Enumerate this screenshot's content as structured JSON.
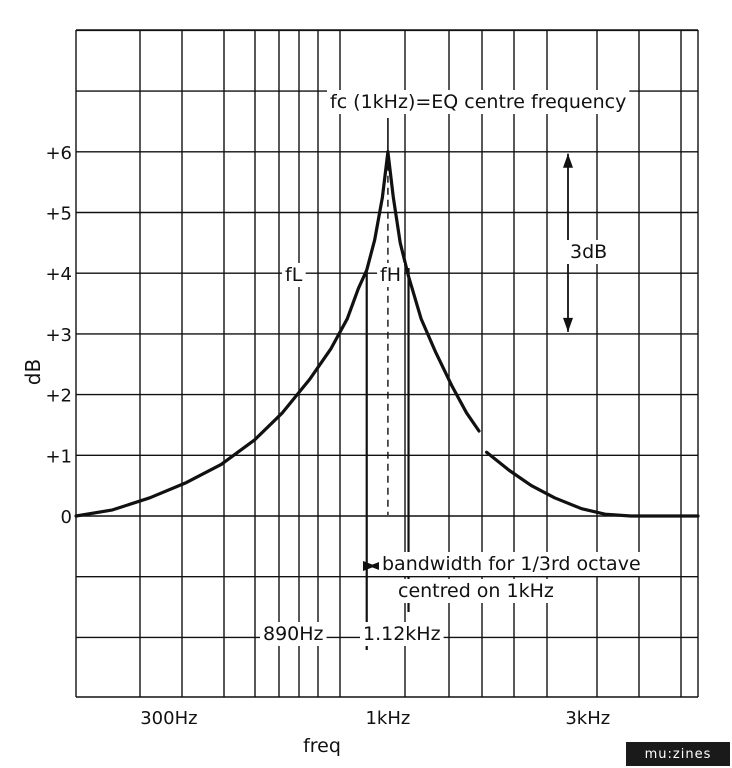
{
  "chart_data": {
    "type": "line",
    "xlabel": "freq",
    "ylabel": "dB",
    "x_scale": "log",
    "xlim_hz": [
      180,
      5500
    ],
    "ylim": [
      -3,
      8
    ],
    "grid": true,
    "y_ticks": [
      {
        "value": 0,
        "label": "0"
      },
      {
        "value": 1,
        "label": "+1"
      },
      {
        "value": 2,
        "label": "+2"
      },
      {
        "value": 3,
        "label": "+3"
      },
      {
        "value": 4,
        "label": "+4"
      },
      {
        "value": 5,
        "label": "+5"
      },
      {
        "value": 6,
        "label": "+6"
      }
    ],
    "x_ticks": [
      {
        "value": 300,
        "label": "300Hz"
      },
      {
        "value": 1000,
        "label": "1kHz"
      },
      {
        "value": 3000,
        "label": "3kHz"
      }
    ],
    "series": [
      {
        "x": [
          180,
          220,
          270,
          330,
          400,
          480,
          560,
          650,
          730,
          800,
          850,
          890,
          930,
          970,
          1000
        ],
        "y": [
          0,
          0.1,
          0.3,
          0.55,
          0.85,
          1.25,
          1.7,
          2.25,
          2.75,
          3.25,
          3.75,
          4.05,
          4.55,
          5.25,
          6.0
        ]
      },
      {
        "x": [
          1000,
          1030,
          1070,
          1120,
          1200,
          1300,
          1420,
          1540,
          1650
        ],
        "y": [
          6.0,
          5.25,
          4.5,
          3.95,
          3.25,
          2.7,
          2.15,
          1.7,
          1.4
        ]
      },
      {
        "x": [
          1720,
          1950,
          2200,
          2500,
          2900,
          3300,
          3800,
          4400,
          5000,
          5500
        ],
        "y": [
          1.05,
          0.75,
          0.5,
          0.3,
          0.12,
          0.03,
          0.0,
          0.0,
          0.0,
          0.0
        ]
      }
    ],
    "annotations": {
      "fc_label": "fc (1kHz)=EQ centre frequency",
      "fL_label": "fL",
      "fH_label": "fH",
      "db_span_label": "3dB",
      "bandwidth_line1": "bandwidth for 1/3rd octave",
      "bandwidth_line2": "centred on 1kHz",
      "fL_freq_label": "890Hz",
      "fH_freq_label": "1.12kHz",
      "fc_hz": 1000,
      "fL_hz": 890,
      "fH_hz": 1120,
      "peak_db": 6,
      "minus3_db": 3
    }
  },
  "watermark": {
    "text": "mu:zines"
  }
}
